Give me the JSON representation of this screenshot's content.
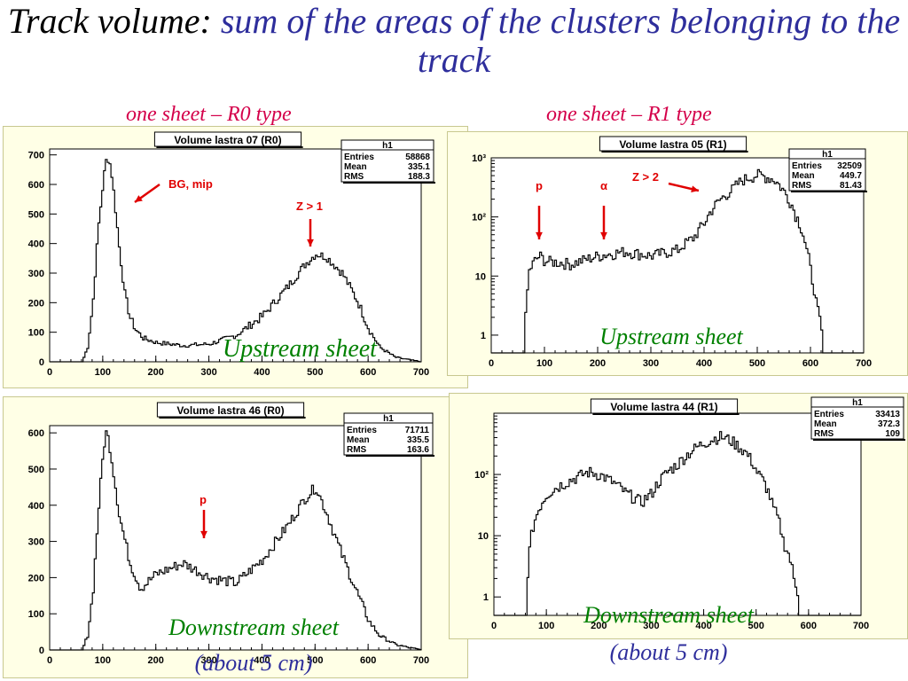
{
  "slide": {
    "title_black": "Track volume: ",
    "title_blue": "sum of the areas of the clusters belonging to the track",
    "left_subtitle": "one sheet – R0 type",
    "right_subtitle": "one sheet – R1 type"
  },
  "chart_data": [
    {
      "type": "line",
      "title": "Volume lastra 07 (R0)",
      "scale": "linear",
      "xlim": [
        0,
        700
      ],
      "ylim": [
        0,
        720
      ],
      "xticks": [
        0,
        100,
        200,
        300,
        400,
        500,
        600,
        700
      ],
      "yticks": [
        0,
        100,
        200,
        300,
        400,
        500,
        600,
        700
      ],
      "stats": {
        "name": "h1",
        "entries": "58868",
        "mean": "335.1",
        "rms": "188.3"
      },
      "caption": "Upstream sheet",
      "annotations": [
        {
          "text": "BG, mip",
          "x": 170,
          "y": 620
        },
        {
          "text": "Z > 1",
          "x": 500,
          "y": 530
        }
      ],
      "x": [
        0,
        60,
        70,
        80,
        90,
        100,
        105,
        110,
        115,
        120,
        130,
        140,
        150,
        160,
        175,
        200,
        250,
        300,
        350,
        400,
        450,
        480,
        500,
        520,
        550,
        580,
        600,
        620,
        650,
        680,
        700
      ],
      "y": [
        0,
        0,
        50,
        200,
        450,
        620,
        680,
        690,
        640,
        560,
        380,
        230,
        150,
        110,
        80,
        65,
        55,
        60,
        90,
        155,
        260,
        330,
        365,
        355,
        300,
        200,
        110,
        50,
        15,
        5,
        0
      ]
    },
    {
      "type": "line",
      "title": "Volume lastra 05 (R1)",
      "scale": "log",
      "xlim": [
        0,
        700
      ],
      "ylim": [
        0.5,
        1000
      ],
      "xticks": [
        0,
        100,
        200,
        300,
        400,
        500,
        600,
        700
      ],
      "yticks": [
        "1",
        "10",
        "10²",
        "10³"
      ],
      "stats": {
        "name": "h1",
        "entries": "32509",
        "mean": "449.7",
        "rms": "81.43"
      },
      "caption": "Upstream sheet",
      "annotations": [
        {
          "text": "p",
          "x": 90,
          "y": 25
        },
        {
          "text": "α",
          "x": 210,
          "y": 25
        },
        {
          "text": "Z > 2",
          "x": 300,
          "y": 500
        }
      ],
      "x": [
        60,
        65,
        70,
        80,
        90,
        100,
        150,
        200,
        250,
        300,
        350,
        380,
        400,
        450,
        470,
        500,
        530,
        550,
        570,
        590,
        600,
        610,
        620
      ],
      "y": [
        0.5,
        3,
        12,
        18,
        22,
        18,
        16,
        22,
        26,
        22,
        28,
        45,
        80,
        280,
        420,
        520,
        430,
        260,
        110,
        30,
        10,
        3,
        1
      ]
    },
    {
      "type": "line",
      "title": "Volume lastra 46 (R0)",
      "scale": "linear",
      "xlim": [
        0,
        700
      ],
      "ylim": [
        0,
        620
      ],
      "xticks": [
        0,
        100,
        200,
        300,
        400,
        500,
        600,
        700
      ],
      "yticks": [
        0,
        100,
        200,
        300,
        400,
        500,
        600
      ],
      "stats": {
        "name": "h1",
        "entries": "71711",
        "mean": "335.5",
        "rms": "163.6"
      },
      "caption": "Downstream sheet",
      "caption2": "(about 5 cm)",
      "annotations": [
        {
          "text": "p",
          "x": 300,
          "y": 390
        }
      ],
      "x": [
        0,
        60,
        70,
        80,
        90,
        100,
        105,
        110,
        120,
        130,
        150,
        170,
        200,
        250,
        300,
        350,
        400,
        450,
        480,
        500,
        520,
        550,
        580,
        600,
        620,
        650,
        680,
        700
      ],
      "y": [
        0,
        0,
        40,
        160,
        380,
        560,
        600,
        580,
        480,
        370,
        240,
        170,
        210,
        240,
        200,
        185,
        250,
        350,
        420,
        450,
        380,
        260,
        150,
        80,
        40,
        15,
        5,
        0
      ]
    },
    {
      "type": "line",
      "title": "Volume lastra 44 (R1)",
      "scale": "log",
      "xlim": [
        0,
        700
      ],
      "ylim": [
        0.5,
        1000
      ],
      "xticks": [
        0,
        100,
        200,
        300,
        400,
        500,
        600,
        700
      ],
      "yticks": [
        "1",
        "10",
        "10²"
      ],
      "stats": {
        "name": "h1",
        "entries": "33413",
        "mean": "372.3",
        "rms": "109"
      },
      "caption": "Downstream sheet",
      "caption2": "(about 5 cm)",
      "x": [
        60,
        65,
        70,
        80,
        90,
        100,
        150,
        180,
        200,
        230,
        250,
        280,
        300,
        350,
        400,
        430,
        450,
        480,
        500,
        530,
        550,
        570,
        580
      ],
      "y": [
        0.5,
        4,
        10,
        22,
        35,
        48,
        85,
        110,
        100,
        70,
        50,
        35,
        50,
        150,
        330,
        420,
        360,
        220,
        110,
        30,
        8,
        2,
        1
      ]
    }
  ]
}
